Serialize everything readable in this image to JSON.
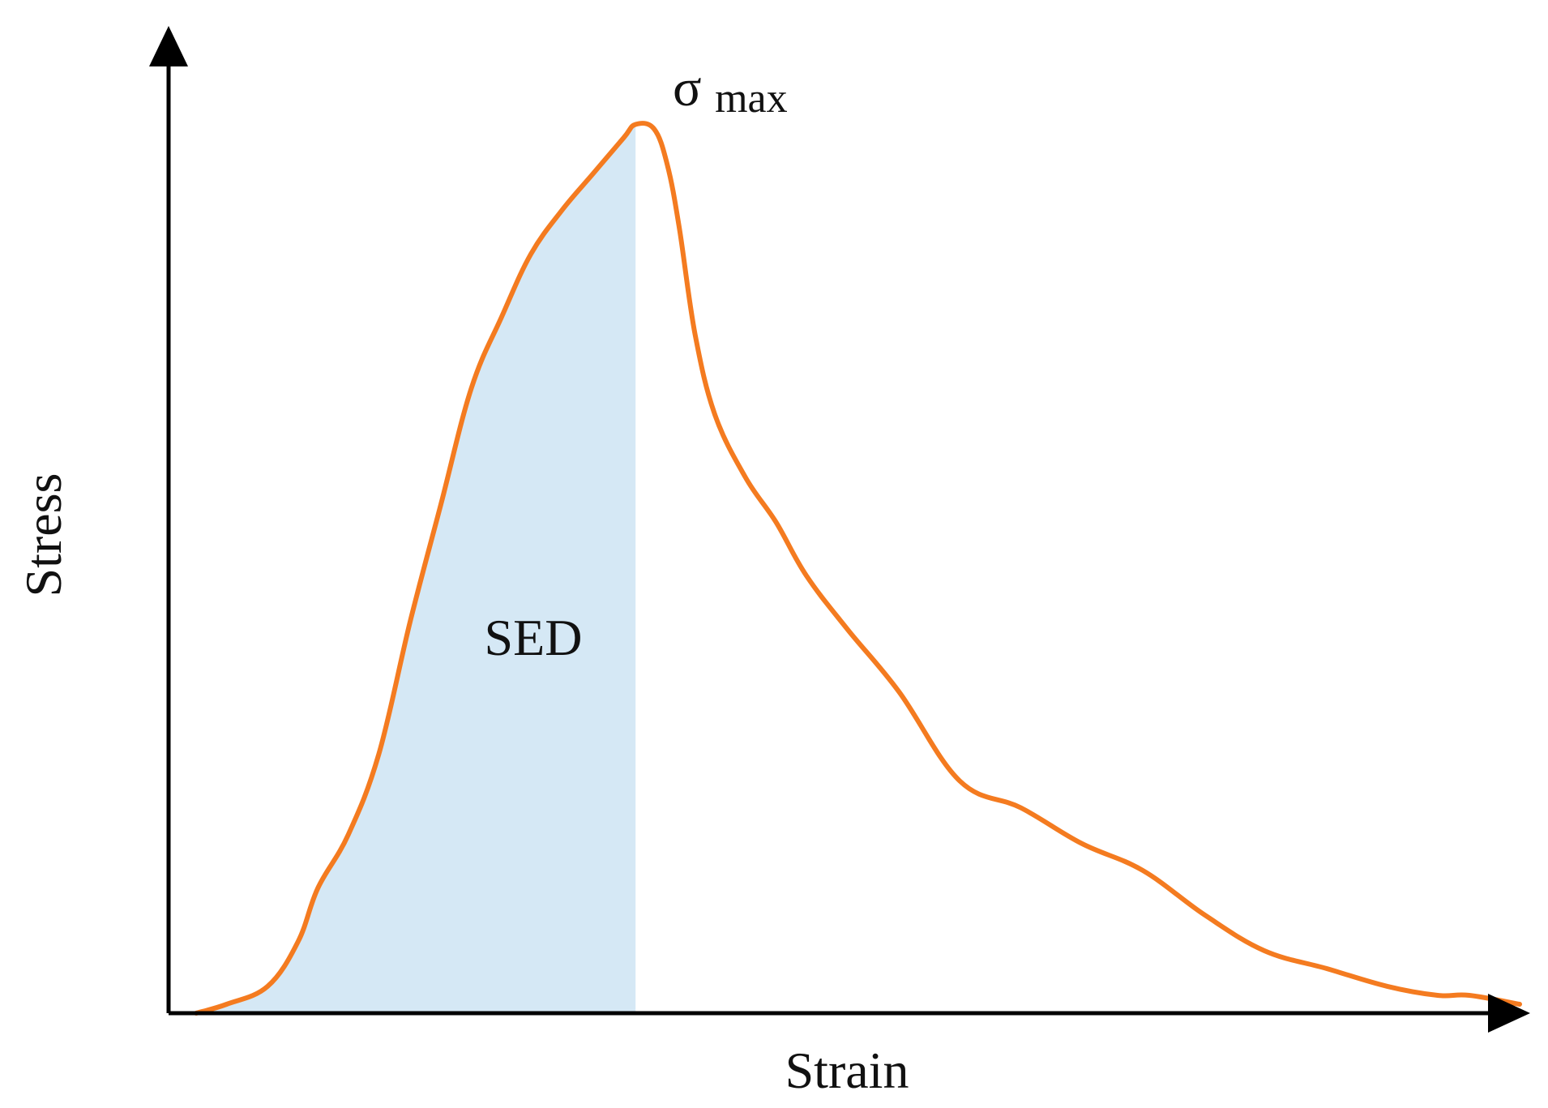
{
  "chart_data": {
    "type": "area",
    "title": "",
    "xlabel": "Strain",
    "ylabel": "Stress",
    "xlim": [
      0,
      100
    ],
    "ylim": [
      0,
      100
    ],
    "grid": false,
    "axis_ticks": false,
    "series": [
      {
        "x": [
          0,
          2.3,
          5.4,
          7.7,
          9.2,
          11.5,
          13.8,
          16.2,
          18.5,
          20.8,
          23.1,
          25.3,
          27.7,
          30,
          32.3,
          33.2,
          34.6,
          35.6,
          36.5,
          37.7,
          39.2,
          41.5,
          43.8,
          46.1,
          49.2,
          53.1,
          57.7,
          62.3,
          66.9,
          71.5,
          76.2,
          80.7,
          85.4,
          90,
          93.8,
          96.2,
          100
        ],
        "y": [
          0,
          1,
          3,
          8,
          14,
          20,
          29,
          44,
          57,
          70,
          78,
          85,
          90,
          94,
          98,
          99.5,
          99,
          95,
          88,
          76,
          67,
          60,
          55,
          49,
          43,
          36,
          26,
          23,
          19,
          16,
          11,
          7,
          5,
          3,
          2,
          2,
          1
        ]
      }
    ],
    "shaded_region": {
      "label": "SED",
      "x_from": 0,
      "x_to": 33.2,
      "color": "#d5e8f5"
    },
    "annotations": [
      {
        "text_main": "σ",
        "text_sub": "max",
        "x": 33.2,
        "y": 99.5
      }
    ],
    "curve_color": "#f47b20",
    "axis_color": "#000000"
  }
}
